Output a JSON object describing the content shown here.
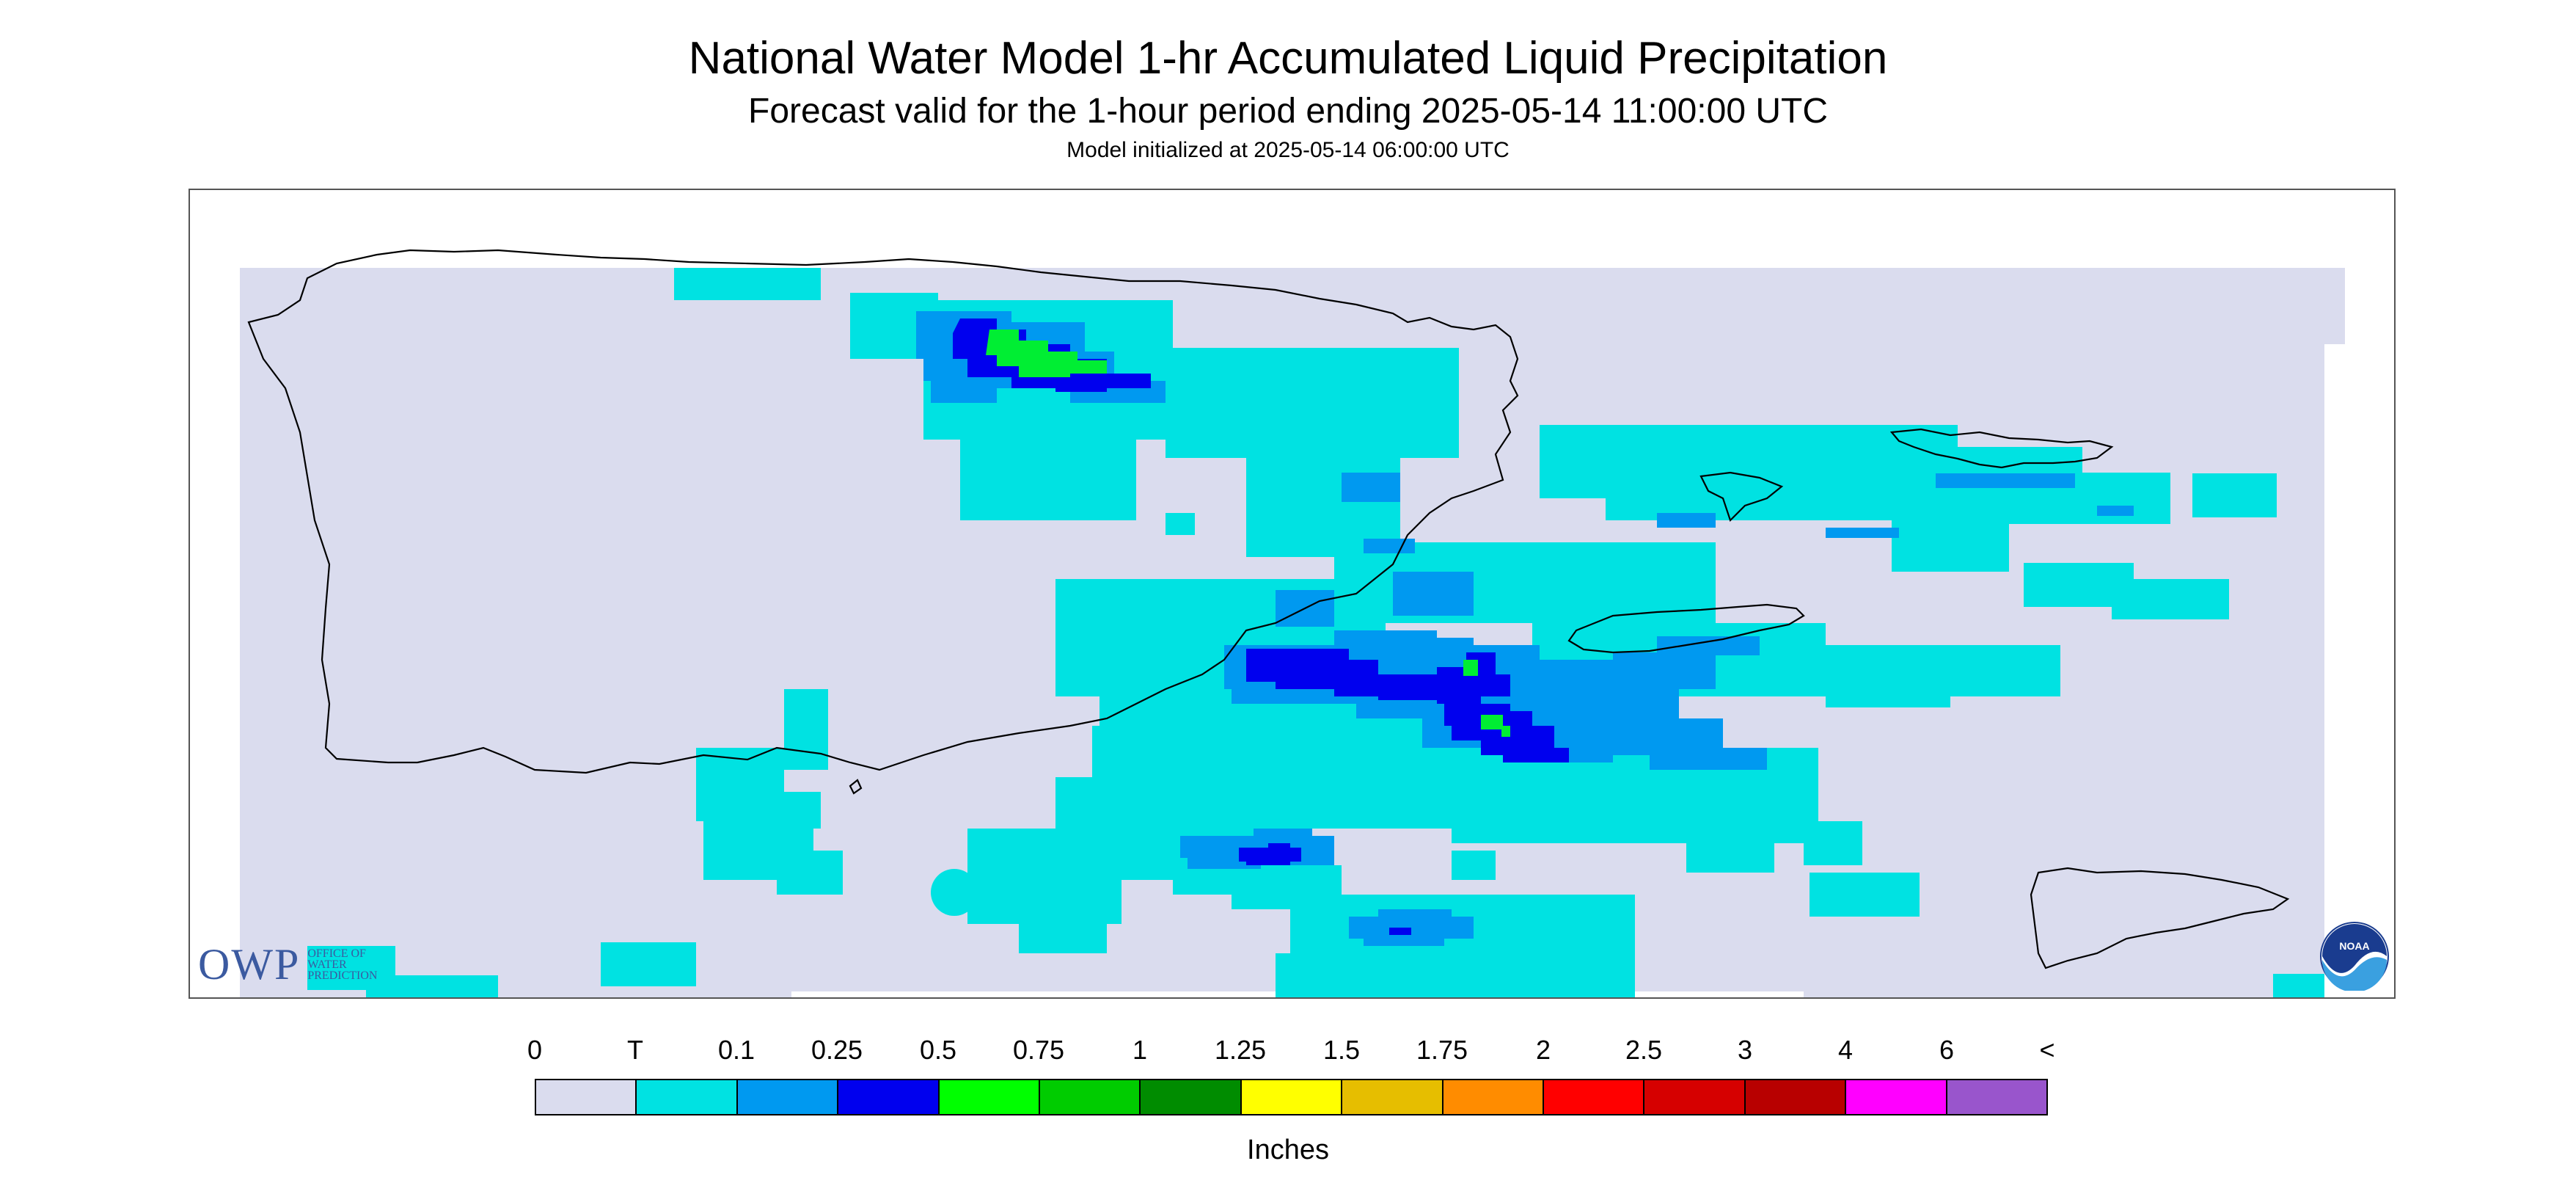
{
  "header": {
    "title": "National Water Model 1-hr Accumulated Liquid Precipitation",
    "subtitle": "Forecast valid for the 1-hour period ending 2025-05-14 11:00:00 UTC",
    "init": "Model initialized at 2025-05-14 06:00:00 UTC"
  },
  "legend": {
    "labels": [
      "0",
      "T",
      "0.1",
      "0.25",
      "0.5",
      "0.75",
      "1",
      "1.25",
      "1.5",
      "1.75",
      "2",
      "2.5",
      "3",
      "4",
      "6",
      "<"
    ],
    "colors": [
      "#dadcee",
      "#00e2e2",
      "#0099f0",
      "#0000ee",
      "#00ff00",
      "#00cc00",
      "#008c00",
      "#ffff00",
      "#e6be00",
      "#ff8c00",
      "#ff0000",
      "#d60000",
      "#b80000",
      "#ff00ff",
      "#9955cc"
    ],
    "units": "Inches"
  },
  "logos": {
    "owp_mark": "OWP",
    "owp_text": [
      "OFFICE OF",
      "WATER",
      "PREDICTION"
    ],
    "noaa_text": "NOAA"
  },
  "colors": {
    "background": "#dadcee",
    "trace": "#00e2e2",
    "light_blue": "#0099f0",
    "blue": "#0000ee",
    "green": "#00ff00",
    "coastline": "#000000"
  },
  "map": {
    "region": "Puerto Rico and U.S. Virgin Islands",
    "precip_max_category": "0.75"
  }
}
